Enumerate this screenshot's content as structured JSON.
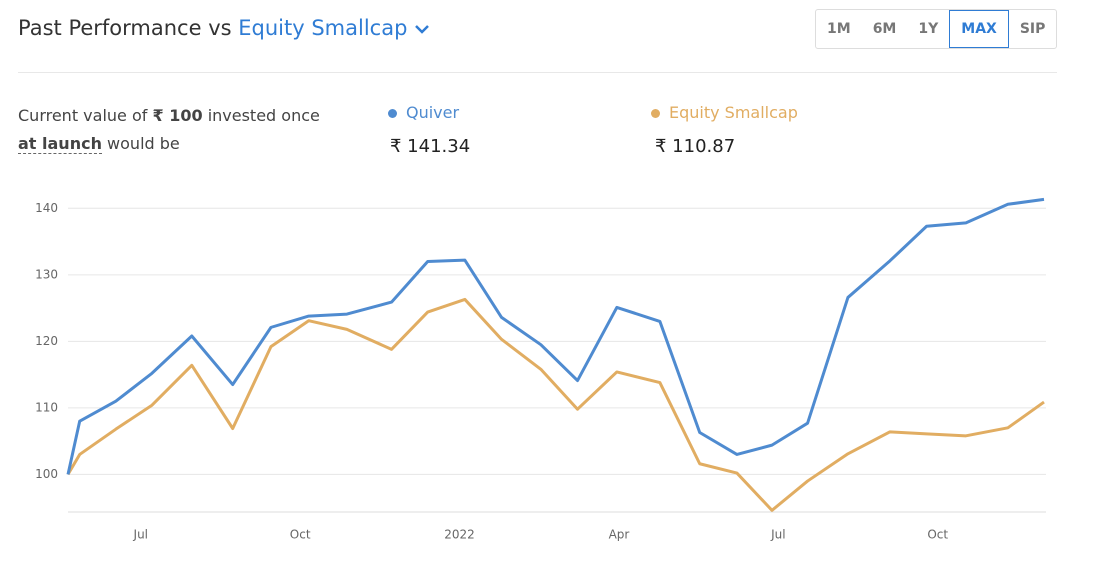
{
  "header": {
    "title": "Past Performance vs",
    "benchmark": "Equity Smallcap"
  },
  "periods": {
    "options": [
      "1M",
      "6M",
      "1Y",
      "MAX",
      "SIP"
    ],
    "active": 3
  },
  "summary": {
    "text": [
      "Current value of",
      "₹ 100",
      "invested once",
      "at launch",
      "would be"
    ],
    "values": [
      "₹ 141.34",
      "₹ 110.87"
    ]
  },
  "chart_data": {
    "type": "line",
    "x": [
      -1.37,
      -1.15,
      -0.47,
      0.21,
      0.96,
      1.73,
      2.45,
      3.16,
      3.88,
      4.72,
      5.4,
      6.1,
      6.79,
      7.53,
      8.22,
      8.96,
      9.77,
      10.52,
      11.22,
      11.88,
      12.55,
      13.31,
      14.1,
      14.79,
      15.53,
      16.32,
      17.0
    ],
    "series": [
      {
        "name": "Quiver",
        "color": "#4f8bd0",
        "values": [
          100,
          108,
          111,
          115.2,
          120.8,
          113.5,
          122.1,
          123.8,
          124.1,
          125.9,
          132,
          132.2,
          123.6,
          119.5,
          114.1,
          125.1,
          123,
          106.3,
          103,
          104.4,
          107.7,
          126.6,
          132.1,
          137.3,
          137.8,
          140.6,
          141.34
        ]
      },
      {
        "name": "Equity Smallcap",
        "color": "#e1ad62",
        "values": [
          100,
          103,
          106.8,
          110.4,
          116.4,
          106.9,
          119.2,
          123.1,
          121.8,
          118.8,
          124.4,
          126.3,
          120.3,
          115.8,
          109.8,
          115.4,
          113.8,
          101.6,
          100.2,
          94.6,
          99,
          103.1,
          106.4,
          106.1,
          105.8,
          107,
          110.87
        ]
      }
    ],
    "xlim": [
      -1.37,
      17.0
    ],
    "xticks": [
      {
        "value": 0,
        "label": "Jul"
      },
      {
        "value": 3,
        "label": "Oct"
      },
      {
        "value": 6,
        "label": "2022"
      },
      {
        "value": 9,
        "label": "Apr"
      },
      {
        "value": 12,
        "label": "Jul"
      },
      {
        "value": 15,
        "label": "Oct"
      }
    ],
    "ylim": [
      94.5,
      143.5
    ],
    "yticks": [
      100,
      110,
      120,
      130,
      140
    ],
    "grid": true
  }
}
